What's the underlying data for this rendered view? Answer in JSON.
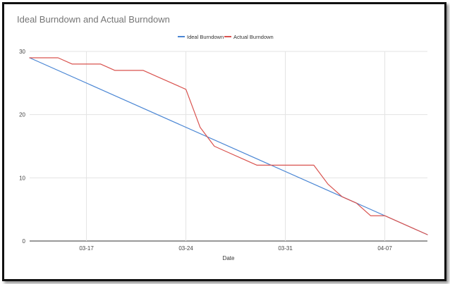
{
  "chart_data": {
    "type": "line",
    "title": "Ideal Burndown and Actual Burndown",
    "xlabel": "Date",
    "ylabel": "",
    "ylim": [
      0,
      30
    ],
    "yticks": [
      0,
      10,
      20,
      30
    ],
    "x_ticks": [
      "03-17",
      "03-24",
      "03-31",
      "04-07"
    ],
    "x_tick_positions": [
      4,
      11,
      18,
      25
    ],
    "xlim": [
      0,
      28
    ],
    "grid": true,
    "legend": "top-center",
    "series": [
      {
        "name": "Ideal Burndown",
        "color": "#4a86d4",
        "points": [
          [
            0,
            29
          ],
          [
            28,
            1
          ]
        ]
      },
      {
        "name": "Actual Burndown",
        "color": "#d9534f",
        "points": [
          [
            0,
            29
          ],
          [
            1,
            29
          ],
          [
            2,
            29
          ],
          [
            3,
            28
          ],
          [
            4,
            28
          ],
          [
            5,
            28
          ],
          [
            6,
            27
          ],
          [
            7,
            27
          ],
          [
            8,
            27
          ],
          [
            9,
            26
          ],
          [
            10,
            25
          ],
          [
            11,
            24
          ],
          [
            12,
            18
          ],
          [
            13,
            15
          ],
          [
            14,
            14
          ],
          [
            15,
            13
          ],
          [
            16,
            12
          ],
          [
            17,
            12
          ],
          [
            18,
            12
          ],
          [
            19,
            12
          ],
          [
            20,
            12
          ],
          [
            21,
            9
          ],
          [
            22,
            7
          ],
          [
            23,
            6
          ],
          [
            24,
            4
          ],
          [
            25,
            4
          ],
          [
            26,
            3
          ],
          [
            27,
            2
          ],
          [
            28,
            1
          ]
        ]
      }
    ]
  }
}
